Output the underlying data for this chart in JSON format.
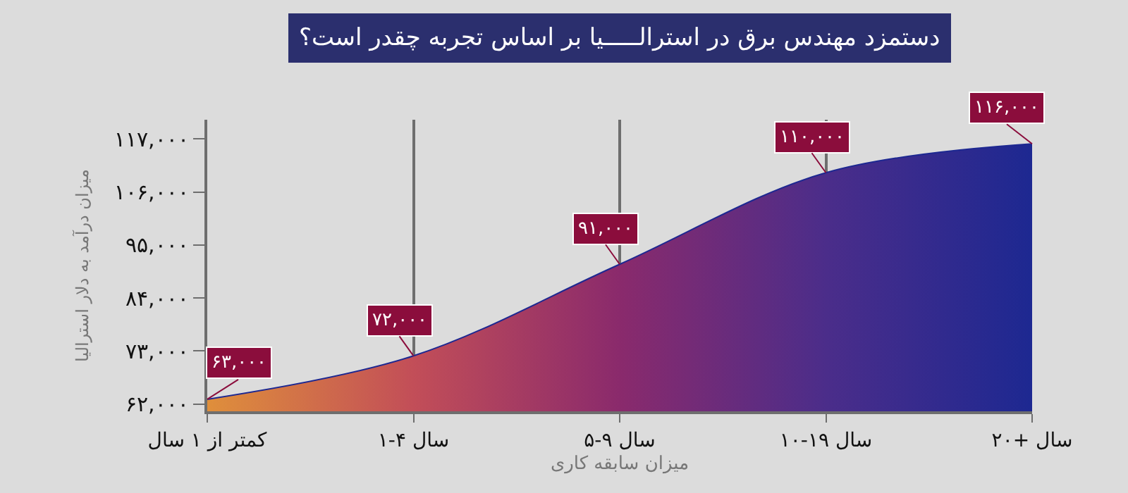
{
  "chart_data": {
    "type": "area",
    "title": "دستمزد مهندس برق در استرالـــــیا بر اساس تجربه چقدر است؟",
    "xlabel": "میزان سابقه کاری",
    "ylabel": "میزان درآمد به دلار استرالیا",
    "categories": [
      "کمتر از ۱ سال",
      "۱-۴ سال",
      "۵-۹ سال",
      "۱۰-۱۹ سال",
      "۲۰+ سال"
    ],
    "values": [
      63000,
      72000,
      91000,
      110000,
      116000
    ],
    "value_labels": [
      "۶۳,۰۰۰",
      "۷۲,۰۰۰",
      "۹۱,۰۰۰",
      "۱۱۰,۰۰۰",
      "۱۱۶,۰۰۰"
    ],
    "colors": [
      "#df8f3b",
      "#c24e58",
      "#8a2a6c",
      "#4b2d8a",
      "#1d2891"
    ],
    "ylim": [
      60500,
      121000
    ],
    "yticks": [
      {
        "value": 62000,
        "label": "۶۲,۰۰۰"
      },
      {
        "value": 73000,
        "label": "۷۳,۰۰۰"
      },
      {
        "value": 84000,
        "label": "۸۴,۰۰۰"
      },
      {
        "value": 95000,
        "label": "۹۵,۰۰۰"
      },
      {
        "value": 106000,
        "label": "۱۰۶,۰۰۰"
      },
      {
        "value": 117000,
        "label": "۱۱۷,۰۰۰"
      }
    ],
    "grid": "x",
    "legend": false,
    "marker": "none"
  }
}
